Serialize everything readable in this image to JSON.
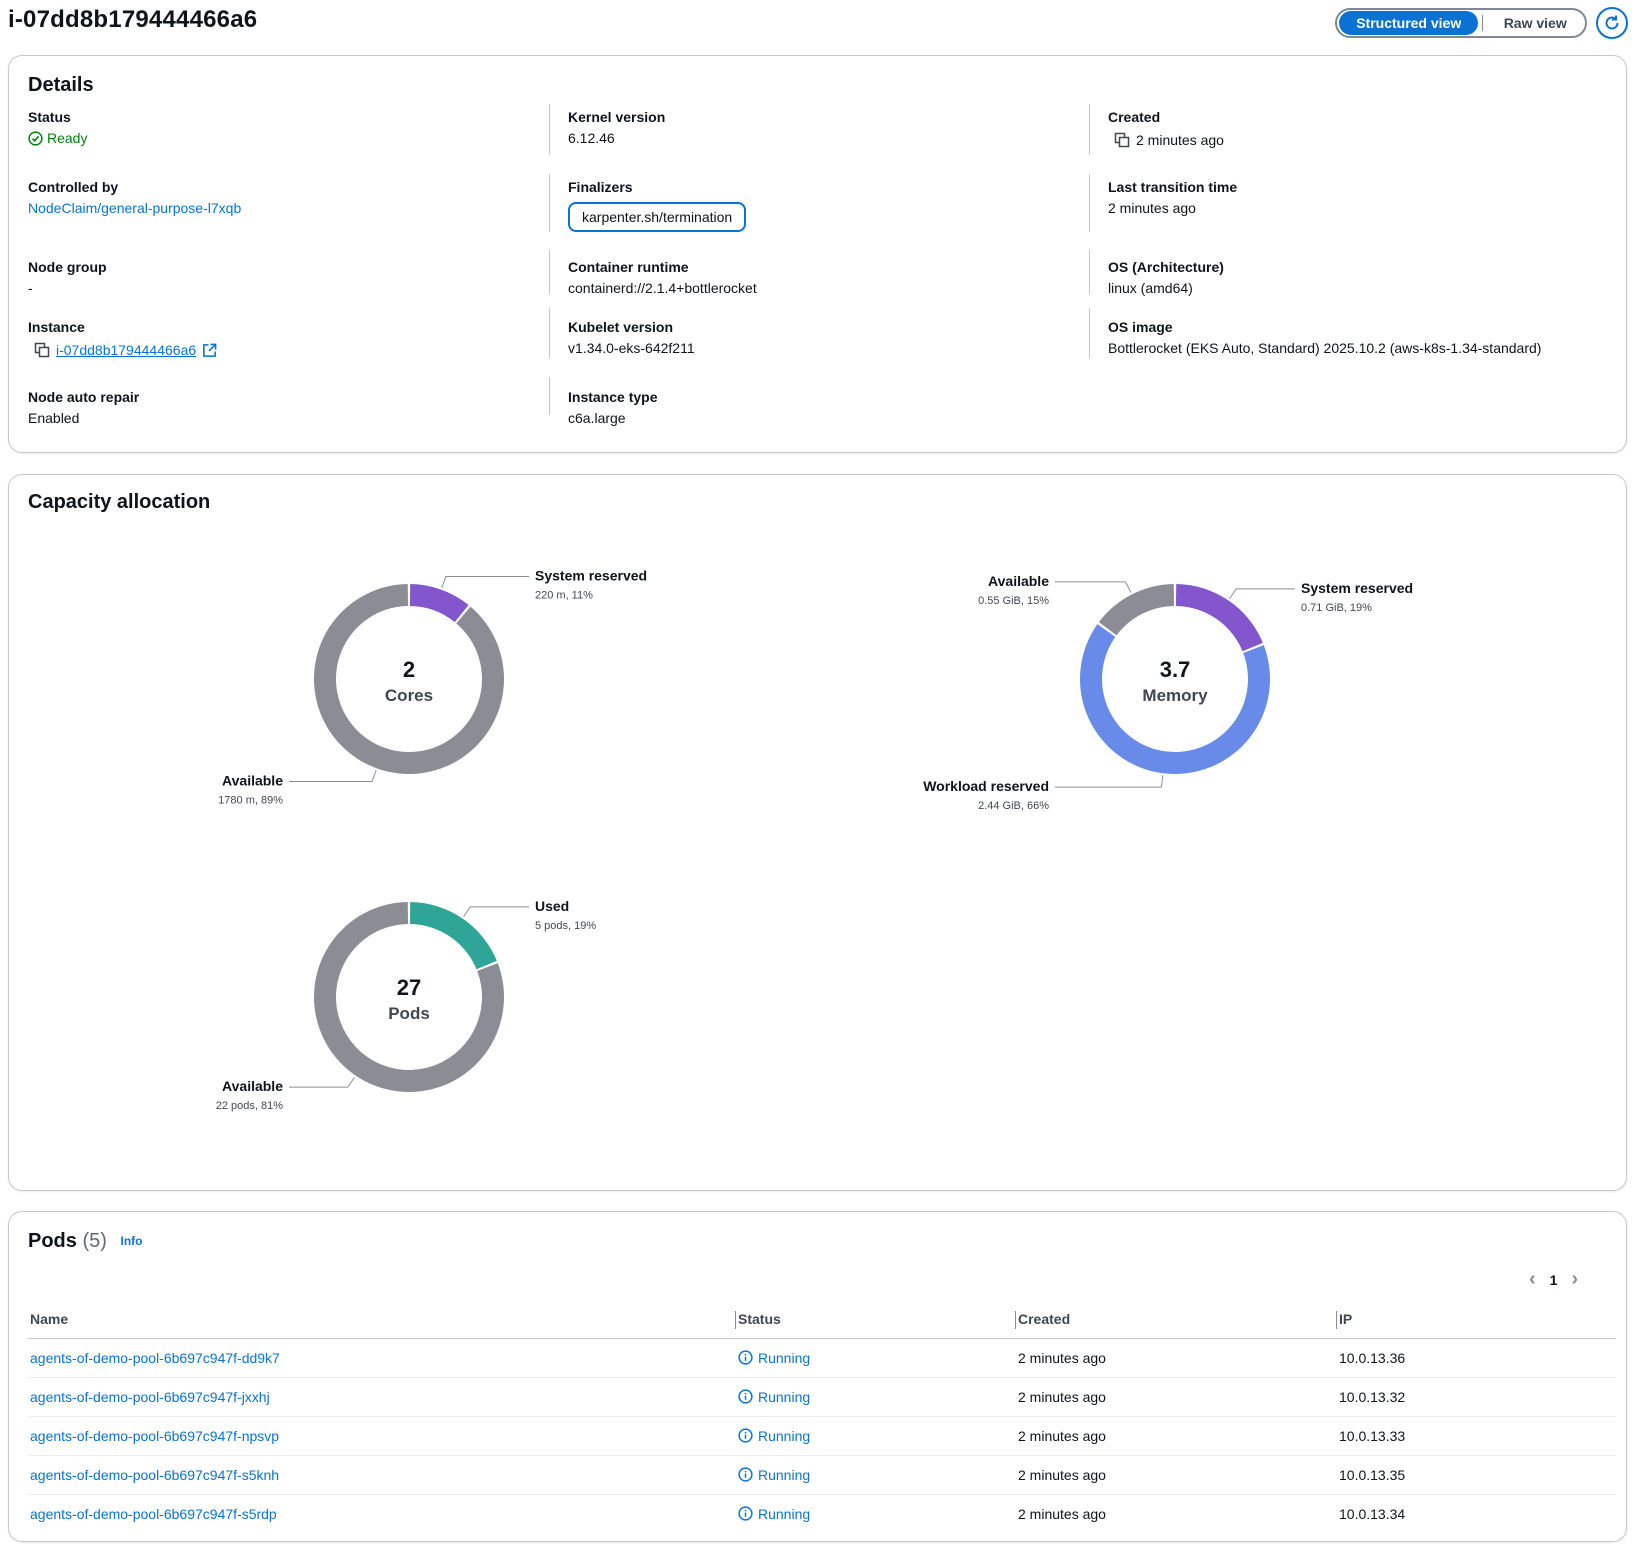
{
  "header": {
    "title": "i-07dd8b179444466a6",
    "view_structured": "Structured view",
    "view_raw": "Raw view"
  },
  "details": {
    "title": "Details",
    "status_label": "Status",
    "status_value": "Ready",
    "controlled_by_label": "Controlled by",
    "controlled_by_value": "NodeClaim/general-purpose-l7xqb",
    "node_group_label": "Node group",
    "node_group_value": "-",
    "instance_label": "Instance",
    "instance_value": "i-07dd8b179444466a6",
    "node_auto_repair_label": "Node auto repair",
    "node_auto_repair_value": "Enabled",
    "kernel_version_label": "Kernel version",
    "kernel_version_value": "6.12.46",
    "finalizers_label": "Finalizers",
    "finalizers_value": "karpenter.sh/termination",
    "container_runtime_label": "Container runtime",
    "container_runtime_value": "containerd://2.1.4+bottlerocket",
    "kubelet_version_label": "Kubelet version",
    "kubelet_version_value": "v1.34.0-eks-642f211",
    "instance_type_label": "Instance type",
    "instance_type_value": "c6a.large",
    "created_label": "Created",
    "created_value": "2 minutes ago",
    "last_transition_label": "Last transition time",
    "last_transition_value": "2 minutes ago",
    "os_arch_label": "OS (Architecture)",
    "os_arch_value": "linux (amd64)",
    "os_image_label": "OS image",
    "os_image_value": "Bottlerocket (EKS Auto, Standard) 2025.10.2 (aws-k8s-1.34-standard)"
  },
  "capacity": {
    "title": "Capacity allocation"
  },
  "chart_data": [
    {
      "type": "pie",
      "center_value": "2",
      "center_unit": "Cores",
      "segments": [
        {
          "label": "System reserved",
          "value": 11,
          "detail": "220 m, 11%",
          "color": "#8456ce"
        },
        {
          "label": "Available",
          "value": 89,
          "detail": "1780 m, 89%",
          "color": "#8c8c94"
        }
      ]
    },
    {
      "type": "pie",
      "center_value": "3.7",
      "center_unit": "Memory",
      "segments": [
        {
          "label": "System reserved",
          "value": 19,
          "detail": "0.71 GiB, 19%",
          "color": "#8456ce"
        },
        {
          "label": "Workload reserved",
          "value": 66,
          "detail": "2.44 GiB, 66%",
          "color": "#688ae8"
        },
        {
          "label": "Available",
          "value": 15,
          "detail": "0.55 GiB, 15%",
          "color": "#8c8c94"
        }
      ]
    },
    {
      "type": "pie",
      "center_value": "27",
      "center_unit": "Pods",
      "segments": [
        {
          "label": "Used",
          "value": 19,
          "detail": "5 pods, 19%",
          "color": "#2ea597"
        },
        {
          "label": "Available",
          "value": 81,
          "detail": "22 pods, 81%",
          "color": "#8c8c94"
        }
      ]
    }
  ],
  "pods": {
    "title": "Pods",
    "count": "(5)",
    "info": "Info",
    "page": "1",
    "columns": [
      "Name",
      "Status",
      "Created",
      "IP"
    ],
    "rows": [
      {
        "name": "agents-of-demo-pool-6b697c947f-dd9k7",
        "status": "Running",
        "created": "2 minutes ago",
        "ip": "10.0.13.36"
      },
      {
        "name": "agents-of-demo-pool-6b697c947f-jxxhj",
        "status": "Running",
        "created": "2 minutes ago",
        "ip": "10.0.13.32"
      },
      {
        "name": "agents-of-demo-pool-6b697c947f-npsvp",
        "status": "Running",
        "created": "2 minutes ago",
        "ip": "10.0.13.33"
      },
      {
        "name": "agents-of-demo-pool-6b697c947f-s5knh",
        "status": "Running",
        "created": "2 minutes ago",
        "ip": "10.0.13.35"
      },
      {
        "name": "agents-of-demo-pool-6b697c947f-s5rdp",
        "status": "Running",
        "created": "2 minutes ago",
        "ip": "10.0.13.34"
      }
    ]
  },
  "colors": {
    "accent": "#0972d3",
    "success": "#037f0c",
    "system_reserved": "#8456ce",
    "workload_reserved": "#688ae8",
    "used": "#2ea597",
    "available": "#8c8c94"
  },
  "icons": [
    "refresh-icon",
    "status-ready-icon",
    "copy-icon",
    "external-link-icon",
    "info-icon",
    "chevron-left-icon",
    "chevron-right-icon"
  ]
}
